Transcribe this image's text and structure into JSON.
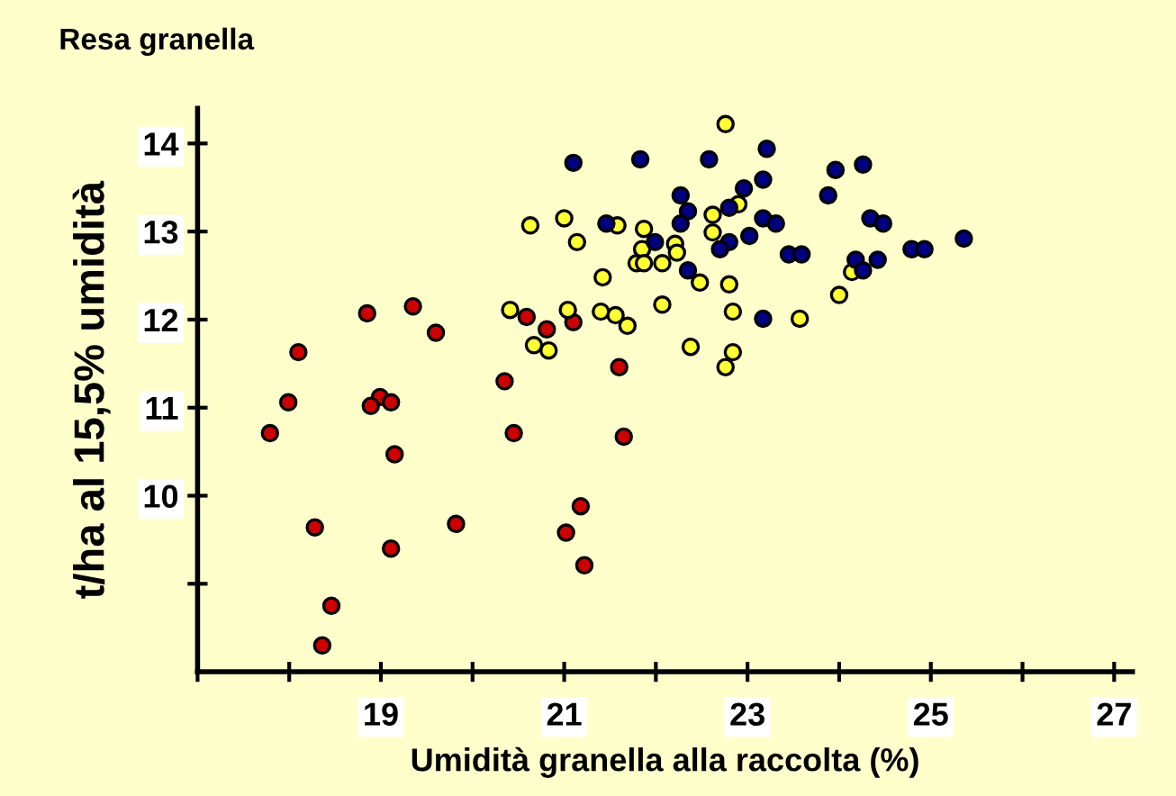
{
  "chart_data": {
    "type": "scatter",
    "title": "Resa granella",
    "xlabel": "Umidità granella alla raccolta (%)",
    "ylabel": "t/ha al 15,5% umidità",
    "xlim": [
      17,
      27.2
    ],
    "xticks": [
      {
        "value": 17,
        "label": null
      },
      {
        "value": 18,
        "label": null
      },
      19,
      {
        "value": 20,
        "label": null
      },
      21,
      {
        "value": 22,
        "label": null
      },
      23,
      {
        "value": 24,
        "label": null
      },
      25,
      {
        "value": 26,
        "label": null
      },
      27
    ],
    "ylim": [
      8,
      14.4
    ],
    "yticks": [
      {
        "value": 9,
        "label": null
      },
      10,
      11,
      12,
      13,
      14
    ],
    "marker": "circle",
    "series": [
      {
        "color": "#cc0000",
        "x": [
          18.85,
          19.35,
          19.6,
          18.1,
          17.99,
          17.79,
          18.99,
          18.89,
          19.11,
          19.15,
          20.35,
          20.45,
          18.28,
          19.11,
          19.82,
          18.46,
          18.36,
          20.59,
          20.81,
          21.1,
          21.6,
          21.65,
          21.18,
          21.02,
          21.22
        ],
        "values": [
          12.07,
          12.15,
          11.85,
          11.63,
          11.06,
          10.71,
          11.12,
          11.02,
          11.06,
          10.47,
          11.3,
          10.71,
          9.64,
          9.4,
          9.68,
          8.75,
          8.3,
          12.03,
          11.89,
          11.97,
          11.46,
          10.67,
          9.88,
          9.58,
          9.21
        ]
      },
      {
        "color": "#ffff33",
        "x": [
          22.76,
          20.63,
          21.0,
          21.14,
          21.58,
          21.87,
          21.85,
          22.21,
          22.23,
          21.79,
          21.87,
          22.07,
          22.62,
          22.62,
          22.9,
          21.42,
          22.48,
          22.8,
          20.41,
          21.04,
          21.4,
          21.56,
          21.69,
          22.07,
          22.84,
          23.57,
          24.0,
          24.14,
          20.67,
          20.83,
          22.38,
          22.84,
          22.76
        ],
        "values": [
          14.22,
          13.07,
          13.15,
          12.88,
          13.07,
          13.03,
          12.8,
          12.86,
          12.76,
          12.64,
          12.64,
          12.64,
          13.19,
          12.99,
          13.31,
          12.48,
          12.42,
          12.4,
          12.11,
          12.11,
          12.09,
          12.05,
          11.93,
          12.17,
          12.09,
          12.01,
          12.28,
          12.54,
          11.71,
          11.65,
          11.69,
          11.63,
          11.46
        ]
      },
      {
        "color": "#000080",
        "x": [
          21.1,
          21.83,
          22.58,
          23.21,
          23.96,
          24.26,
          22.27,
          22.35,
          22.27,
          22.96,
          23.17,
          22.8,
          23.17,
          23.31,
          23.88,
          21.46,
          21.99,
          22.8,
          22.7,
          23.02,
          23.45,
          23.59,
          24.18,
          22.35,
          23.17,
          24.34,
          24.48,
          24.79,
          24.93,
          25.36,
          24.42,
          24.26
        ],
        "values": [
          13.78,
          13.82,
          13.82,
          13.94,
          13.7,
          13.76,
          13.41,
          13.23,
          13.09,
          13.49,
          13.59,
          13.27,
          13.15,
          13.09,
          13.41,
          13.09,
          12.88,
          12.88,
          12.8,
          12.95,
          12.74,
          12.74,
          12.68,
          12.56,
          12.01,
          13.15,
          13.09,
          12.8,
          12.8,
          12.92,
          12.68,
          12.56
        ]
      }
    ]
  }
}
